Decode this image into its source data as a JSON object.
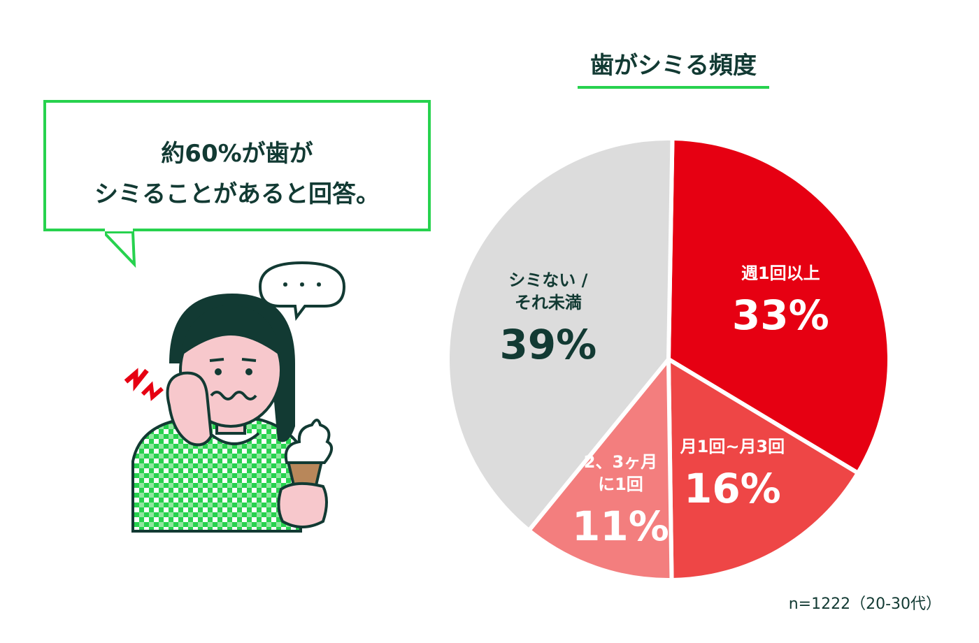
{
  "callout": {
    "line1": "約60%が歯が",
    "line2": "シミることがあると回答。"
  },
  "thought_bubble": "・・・",
  "footnote": "n=1222（20-30代）",
  "chart_data": {
    "type": "pie",
    "title": "歯がシミる頻度",
    "slices": [
      {
        "label_lines": [
          "週1回以上"
        ],
        "value": 33,
        "value_text": "33%",
        "color": "#e60012",
        "text_color": "#ffffff"
      },
      {
        "label_lines": [
          "月1回~月3回"
        ],
        "value": 16,
        "value_text": "16%",
        "color": "#ee4646",
        "text_color": "#ffffff"
      },
      {
        "label_lines": [
          "2、3ヶ月",
          "に1回"
        ],
        "value": 11,
        "value_text": "11%",
        "color": "#f37e7e",
        "text_color": "#ffffff"
      },
      {
        "label_lines": [
          "シミない /",
          "それ未満"
        ],
        "value": 39,
        "value_text": "39%",
        "color": "#dcdcdc",
        "text_color": "#123a33"
      }
    ],
    "legend": "none",
    "label_placement": "inside"
  }
}
